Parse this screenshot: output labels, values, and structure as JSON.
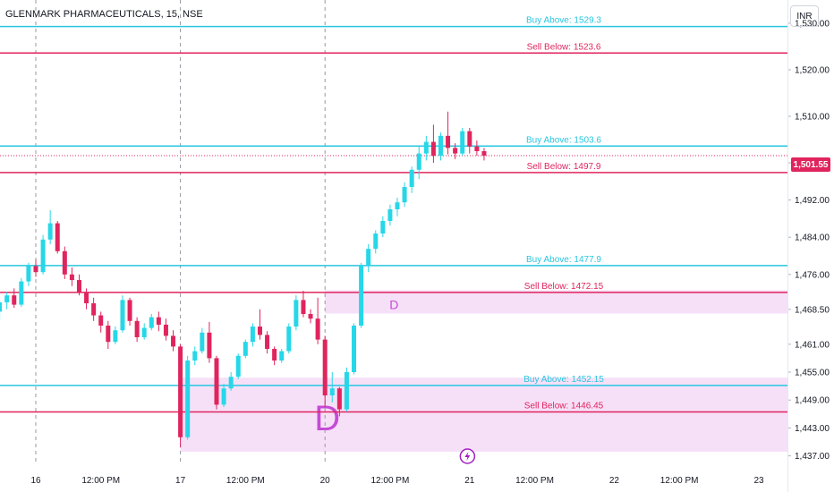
{
  "header": {
    "title": "GLENMARK PHARMACEUTICALS, 15, NSE",
    "currency": "INR"
  },
  "last_price": "1,501.55",
  "colors": {
    "up": "#26d7e8",
    "down": "#e0245e",
    "buy_line": "#28c6e0",
    "sell_line": "#e0245e",
    "zone_fill": "#f3d6f5",
    "zone_label": "#c64ad6"
  },
  "chart_data": {
    "type": "candlestick",
    "title": "GLENMARK PHARMACEUTICALS, 15, NSE",
    "ylim": [
      1435,
      1535
    ],
    "y_ticks": [
      "1,530.00",
      "1,520.00",
      "1,510.00",
      "1,500.00",
      "1,492.00",
      "1,484.00",
      "1,476.00",
      "1,468.50",
      "1,461.00",
      "1,455.00",
      "1,449.00",
      "1,443.00",
      "1,437.00"
    ],
    "y_tick_values": [
      1530,
      1520,
      1510,
      1500,
      1492,
      1484,
      1476,
      1468.5,
      1461,
      1455,
      1449,
      1443,
      1437
    ],
    "x_ticks": [
      "16",
      "12:00 PM",
      "17",
      "12:00 PM",
      "20",
      "12:00 PM",
      "21",
      "12:00 PM",
      "22",
      "12:00 PM",
      "23"
    ],
    "x_tick_bars": [
      5,
      14,
      25,
      34,
      45,
      54,
      65,
      74,
      85,
      94,
      105
    ],
    "session_breaks": [
      5,
      25,
      45
    ],
    "levels": [
      {
        "label": "Buy Above: 1529.3",
        "value": 1529.3,
        "kind": "buy"
      },
      {
        "label": "Sell Below: 1523.6",
        "value": 1523.6,
        "kind": "sell"
      },
      {
        "label": "Buy Above: 1503.6",
        "value": 1503.6,
        "kind": "buy"
      },
      {
        "label": "Sell Below: 1497.9",
        "value": 1497.9,
        "kind": "sell"
      },
      {
        "label": "Buy Above: 1477.9",
        "value": 1477.9,
        "kind": "buy"
      },
      {
        "label": "Sell Below: 1472.15",
        "value": 1472.15,
        "kind": "sell"
      },
      {
        "label": "Buy Above: 1452.15",
        "value": 1452.15,
        "kind": "buy"
      },
      {
        "label": "Sell Below: 1446.45",
        "value": 1446.45,
        "kind": "sell"
      }
    ],
    "zones": [
      {
        "label": "D",
        "from_bar": 45,
        "y_top": 1472.6,
        "y_bottom": 1467.6,
        "size": "small"
      },
      {
        "label": "D",
        "from_bar": 25,
        "y_top": 1453.8,
        "y_bottom": 1437.9,
        "size": "large"
      }
    ],
    "candles": [
      [
        1468.0,
        1470.6,
        1466.2,
        1470.0
      ],
      [
        1470.0,
        1472.2,
        1468.5,
        1471.5
      ],
      [
        1471.5,
        1473.0,
        1468.8,
        1469.5
      ],
      [
        1469.5,
        1475.2,
        1469.0,
        1474.5
      ],
      [
        1474.5,
        1478.5,
        1473.5,
        1477.8
      ],
      [
        1477.8,
        1479.2,
        1475.5,
        1476.5
      ],
      [
        1476.5,
        1484.5,
        1476.0,
        1483.5
      ],
      [
        1483.5,
        1489.8,
        1482.5,
        1487.0
      ],
      [
        1487.0,
        1487.5,
        1480.5,
        1481.0
      ],
      [
        1481.0,
        1482.0,
        1475.0,
        1476.0
      ],
      [
        1476.0,
        1477.5,
        1473.5,
        1474.8
      ],
      [
        1474.8,
        1476.0,
        1471.5,
        1472.2
      ],
      [
        1472.2,
        1473.0,
        1468.5,
        1469.8
      ],
      [
        1469.8,
        1471.0,
        1466.0,
        1467.2
      ],
      [
        1467.2,
        1468.0,
        1463.5,
        1465.0
      ],
      [
        1465.0,
        1466.0,
        1460.0,
        1461.5
      ],
      [
        1461.5,
        1464.8,
        1461.0,
        1464.0
      ],
      [
        1464.0,
        1471.5,
        1463.5,
        1470.5
      ],
      [
        1470.5,
        1471.0,
        1465.0,
        1466.0
      ],
      [
        1466.0,
        1466.8,
        1461.5,
        1462.5
      ],
      [
        1462.5,
        1465.5,
        1462.0,
        1464.5
      ],
      [
        1464.5,
        1467.5,
        1464.0,
        1466.8
      ],
      [
        1466.8,
        1468.0,
        1463.8,
        1465.2
      ],
      [
        1465.2,
        1466.5,
        1461.8,
        1462.8
      ],
      [
        1462.8,
        1464.0,
        1459.5,
        1460.5
      ],
      [
        1460.5,
        1461.0,
        1438.8,
        1441.0
      ],
      [
        1441.0,
        1458.5,
        1440.5,
        1457.5
      ],
      [
        1457.5,
        1460.5,
        1456.5,
        1459.5
      ],
      [
        1459.5,
        1464.5,
        1459.0,
        1463.5
      ],
      [
        1463.5,
        1465.8,
        1457.0,
        1458.0
      ],
      [
        1458.0,
        1458.5,
        1447.0,
        1448.0
      ],
      [
        1448.0,
        1452.5,
        1447.5,
        1451.5
      ],
      [
        1451.5,
        1455.0,
        1451.0,
        1454.0
      ],
      [
        1454.0,
        1459.0,
        1453.5,
        1458.5
      ],
      [
        1458.5,
        1462.0,
        1458.0,
        1461.5
      ],
      [
        1461.5,
        1465.5,
        1460.5,
        1464.8
      ],
      [
        1464.8,
        1468.5,
        1462.0,
        1463.0
      ],
      [
        1463.0,
        1463.8,
        1459.0,
        1460.0
      ],
      [
        1460.0,
        1460.5,
        1456.5,
        1457.5
      ],
      [
        1457.5,
        1460.0,
        1457.0,
        1459.5
      ],
      [
        1459.5,
        1465.5,
        1459.0,
        1464.8
      ],
      [
        1464.8,
        1471.5,
        1464.0,
        1470.5
      ],
      [
        1470.5,
        1472.5,
        1466.8,
        1467.5
      ],
      [
        1467.5,
        1468.5,
        1465.5,
        1466.5
      ],
      [
        1466.5,
        1471.0,
        1461.0,
        1462.0
      ],
      [
        1462.0,
        1462.8,
        1447.5,
        1450.0
      ],
      [
        1450.0,
        1455.0,
        1448.5,
        1451.5
      ],
      [
        1451.5,
        1451.8,
        1445.5,
        1447.0
      ],
      [
        1447.0,
        1456.0,
        1446.5,
        1455.0
      ],
      [
        1455.0,
        1465.5,
        1454.5,
        1465.0
      ],
      [
        1465.0,
        1478.5,
        1464.5,
        1478.0
      ],
      [
        1478.0,
        1482.5,
        1476.5,
        1481.5
      ],
      [
        1481.5,
        1485.5,
        1480.5,
        1484.8
      ],
      [
        1484.8,
        1488.5,
        1484.0,
        1487.5
      ],
      [
        1487.5,
        1491.0,
        1486.5,
        1490.0
      ],
      [
        1490.0,
        1492.5,
        1488.5,
        1491.5
      ],
      [
        1491.5,
        1495.8,
        1490.5,
        1494.8
      ],
      [
        1494.8,
        1499.2,
        1493.5,
        1498.5
      ],
      [
        1498.5,
        1503.5,
        1496.5,
        1502.0
      ],
      [
        1502.0,
        1505.8,
        1500.5,
        1504.5
      ],
      [
        1504.5,
        1508.2,
        1500.0,
        1501.5
      ],
      [
        1501.5,
        1506.5,
        1500.5,
        1505.8
      ],
      [
        1505.8,
        1511.0,
        1501.8,
        1503.2
      ],
      [
        1503.2,
        1504.2,
        1500.8,
        1502.0
      ],
      [
        1502.0,
        1507.5,
        1501.5,
        1506.8
      ],
      [
        1506.8,
        1507.5,
        1502.0,
        1503.5
      ],
      [
        1503.5,
        1504.8,
        1501.5,
        1502.5
      ],
      [
        1502.5,
        1503.2,
        1500.5,
        1501.55
      ]
    ],
    "grid": false,
    "legend": "none"
  }
}
